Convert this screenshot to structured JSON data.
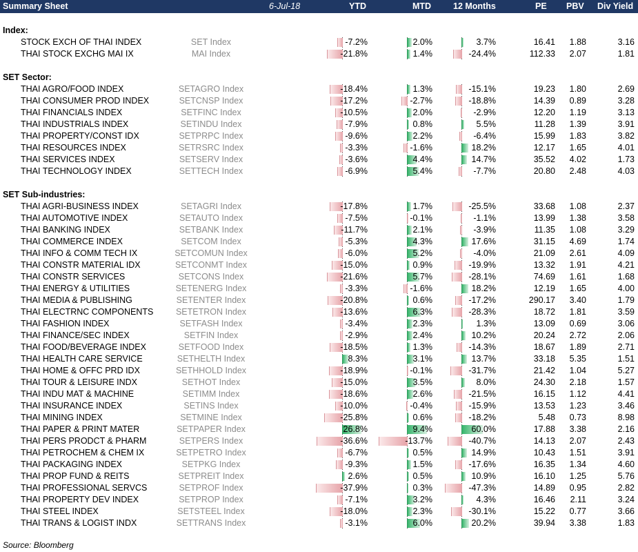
{
  "header": {
    "title": "Summary Sheet",
    "date": "6-Jul-18",
    "ytd": "YTD",
    "mtd": "MTD",
    "twelve_months": "12 Months",
    "pe": "PE",
    "pbv": "PBV",
    "div_yield": "Div Yield"
  },
  "sections": [
    {
      "title": "Index:",
      "rows": [
        {
          "name": "STOCK EXCH OF THAI INDEX",
          "code": "SET Index",
          "ytd": -7.2,
          "ytd_text": "-7.2%",
          "mtd": 2.0,
          "mtd_text": "2.0%",
          "m12": 3.7,
          "m12_text": "3.7%",
          "pe": "16.41",
          "pbv": "1.88",
          "dy": "3.16"
        },
        {
          "name": "THAI STOCK EXCHG MAI IX",
          "code": "MAI Index",
          "ytd": -21.8,
          "ytd_text": "-21.8%",
          "mtd": 1.4,
          "mtd_text": "1.4%",
          "m12": -24.4,
          "m12_text": "-24.4%",
          "pe": "112.33",
          "pbv": "2.07",
          "dy": "1.81"
        }
      ]
    },
    {
      "title": "SET Sector:",
      "rows": [
        {
          "name": "THAI AGRO/FOOD INDEX",
          "code": "SETAGRO Index",
          "ytd": -18.4,
          "ytd_text": "-18.4%",
          "mtd": 1.3,
          "mtd_text": "1.3%",
          "m12": -15.1,
          "m12_text": "-15.1%",
          "pe": "19.23",
          "pbv": "1.80",
          "dy": "2.69"
        },
        {
          "name": "THAI CONSUMER PROD INDEX",
          "code": "SETCNSP Index",
          "ytd": -17.2,
          "ytd_text": "-17.2%",
          "mtd": -2.7,
          "mtd_text": "-2.7%",
          "m12": -18.8,
          "m12_text": "-18.8%",
          "pe": "14.39",
          "pbv": "0.89",
          "dy": "3.28"
        },
        {
          "name": "THAI FINANCIALS INDEX",
          "code": "SETFINC Index",
          "ytd": -10.5,
          "ytd_text": "-10.5%",
          "mtd": 2.0,
          "mtd_text": "2.0%",
          "m12": -2.9,
          "m12_text": "-2.9%",
          "pe": "12.20",
          "pbv": "1.19",
          "dy": "3.13"
        },
        {
          "name": "THAI INDUSTRIALS INDEX",
          "code": "SETINDU Index",
          "ytd": -7.9,
          "ytd_text": "-7.9%",
          "mtd": 0.8,
          "mtd_text": "0.8%",
          "m12": 5.5,
          "m12_text": "5.5%",
          "pe": "11.28",
          "pbv": "1.39",
          "dy": "3.91"
        },
        {
          "name": "THAI PROPERTY/CONST IDX",
          "code": "SETPRPC Index",
          "ytd": -9.6,
          "ytd_text": "-9.6%",
          "mtd": 2.2,
          "mtd_text": "2.2%",
          "m12": -6.4,
          "m12_text": "-6.4%",
          "pe": "15.99",
          "pbv": "1.83",
          "dy": "3.82"
        },
        {
          "name": "THAI RESOURCES INDEX",
          "code": "SETRSRC Index",
          "ytd": -3.3,
          "ytd_text": "-3.3%",
          "mtd": -1.6,
          "mtd_text": "-1.6%",
          "m12": 18.2,
          "m12_text": "18.2%",
          "pe": "12.17",
          "pbv": "1.65",
          "dy": "4.01"
        },
        {
          "name": "THAI SERVICES INDEX",
          "code": "SETSERV Index",
          "ytd": -3.6,
          "ytd_text": "-3.6%",
          "mtd": 4.4,
          "mtd_text": "4.4%",
          "m12": 14.7,
          "m12_text": "14.7%",
          "pe": "35.52",
          "pbv": "4.02",
          "dy": "1.73"
        },
        {
          "name": "THAI TECHNOLOGY INDEX",
          "code": "SETTECH Index",
          "ytd": -6.9,
          "ytd_text": "-6.9%",
          "mtd": 5.4,
          "mtd_text": "5.4%",
          "m12": -7.7,
          "m12_text": "-7.7%",
          "pe": "20.80",
          "pbv": "2.48",
          "dy": "4.03"
        }
      ]
    },
    {
      "title": "SET Sub-industries:",
      "rows": [
        {
          "name": "THAI AGRI-BUSINESS INDEX",
          "code": "SETAGRI Index",
          "ytd": -17.8,
          "ytd_text": "-17.8%",
          "mtd": 1.7,
          "mtd_text": "1.7%",
          "m12": -25.5,
          "m12_text": "-25.5%",
          "pe": "33.68",
          "pbv": "1.08",
          "dy": "2.37"
        },
        {
          "name": "THAI AUTOMOTIVE INDEX",
          "code": "SETAUTO Index",
          "ytd": -7.5,
          "ytd_text": "-7.5%",
          "mtd": -0.1,
          "mtd_text": "-0.1%",
          "m12": -1.1,
          "m12_text": "-1.1%",
          "pe": "13.99",
          "pbv": "1.38",
          "dy": "3.58"
        },
        {
          "name": "THAI BANKING INDEX",
          "code": "SETBANK Index",
          "ytd": -11.7,
          "ytd_text": "-11.7%",
          "mtd": 2.1,
          "mtd_text": "2.1%",
          "m12": -3.9,
          "m12_text": "-3.9%",
          "pe": "11.35",
          "pbv": "1.08",
          "dy": "3.29"
        },
        {
          "name": "THAI COMMERCE INDEX",
          "code": "SETCOM Index",
          "ytd": -5.3,
          "ytd_text": "-5.3%",
          "mtd": 4.3,
          "mtd_text": "4.3%",
          "m12": 17.6,
          "m12_text": "17.6%",
          "pe": "31.15",
          "pbv": "4.69",
          "dy": "1.74"
        },
        {
          "name": "THAI INFO & COMM TECH IX",
          "code": "SETCOMUN Index",
          "ytd": -6.0,
          "ytd_text": "-6.0%",
          "mtd": 5.2,
          "mtd_text": "5.2%",
          "m12": -4.0,
          "m12_text": "-4.0%",
          "pe": "21.09",
          "pbv": "2.61",
          "dy": "4.09"
        },
        {
          "name": "THAI CONSTR MATERIAL IDX",
          "code": "SETCONMT Index",
          "ytd": -15.0,
          "ytd_text": "-15.0%",
          "mtd": 0.9,
          "mtd_text": "0.9%",
          "m12": -19.9,
          "m12_text": "-19.9%",
          "pe": "13.32",
          "pbv": "1.91",
          "dy": "4.21"
        },
        {
          "name": "THAI CONSTR SERVICES",
          "code": "SETCONS Index",
          "ytd": -21.6,
          "ytd_text": "-21.6%",
          "mtd": 5.7,
          "mtd_text": "5.7%",
          "m12": -28.1,
          "m12_text": "-28.1%",
          "pe": "74.69",
          "pbv": "1.61",
          "dy": "1.68"
        },
        {
          "name": "THAI ENERGY & UTILITIES",
          "code": "SETENERG Index",
          "ytd": -3.3,
          "ytd_text": "-3.3%",
          "mtd": -1.6,
          "mtd_text": "-1.6%",
          "m12": 18.2,
          "m12_text": "18.2%",
          "pe": "12.19",
          "pbv": "1.65",
          "dy": "4.00"
        },
        {
          "name": "THAI MEDIA & PUBLISHING",
          "code": "SETENTER Index",
          "ytd": -20.8,
          "ytd_text": "-20.8%",
          "mtd": 0.6,
          "mtd_text": "0.6%",
          "m12": -17.2,
          "m12_text": "-17.2%",
          "pe": "290.17",
          "pbv": "3.40",
          "dy": "1.79"
        },
        {
          "name": "THAI ELECTRNC COMPONENTS",
          "code": "SETETRON Index",
          "ytd": -13.6,
          "ytd_text": "-13.6%",
          "mtd": 6.3,
          "mtd_text": "6.3%",
          "m12": -28.3,
          "m12_text": "-28.3%",
          "pe": "18.72",
          "pbv": "1.81",
          "dy": "3.59"
        },
        {
          "name": "THAI FASHION INDEX",
          "code": "SETFASH Index",
          "ytd": -3.4,
          "ytd_text": "-3.4%",
          "mtd": 2.3,
          "mtd_text": "2.3%",
          "m12": 1.3,
          "m12_text": "1.3%",
          "pe": "13.09",
          "pbv": "0.69",
          "dy": "3.06"
        },
        {
          "name": "THAI FINANCE/SEC INDEX",
          "code": "SETFIN Index",
          "ytd": -2.9,
          "ytd_text": "-2.9%",
          "mtd": 2.4,
          "mtd_text": "2.4%",
          "m12": 10.2,
          "m12_text": "10.2%",
          "pe": "20.24",
          "pbv": "2.72",
          "dy": "2.06"
        },
        {
          "name": "THAI FOOD/BEVERAGE INDEX",
          "code": "SETFOOD Index",
          "ytd": -18.5,
          "ytd_text": "-18.5%",
          "mtd": 1.3,
          "mtd_text": "1.3%",
          "m12": -14.3,
          "m12_text": "-14.3%",
          "pe": "18.67",
          "pbv": "1.89",
          "dy": "2.71"
        },
        {
          "name": "THAI HEALTH CARE SERVICE",
          "code": "SETHELTH Index",
          "ytd": 8.3,
          "ytd_text": "8.3%",
          "mtd": 3.1,
          "mtd_text": "3.1%",
          "m12": 13.7,
          "m12_text": "13.7%",
          "pe": "33.18",
          "pbv": "5.35",
          "dy": "1.51"
        },
        {
          "name": "THAI HOME & OFFC PRD IDX",
          "code": "SETHHOLD Index",
          "ytd": -18.9,
          "ytd_text": "-18.9%",
          "mtd": -0.1,
          "mtd_text": "-0.1%",
          "m12": -31.7,
          "m12_text": "-31.7%",
          "pe": "21.42",
          "pbv": "1.04",
          "dy": "5.27"
        },
        {
          "name": "THAI TOUR & LEISURE INDX",
          "code": "SETHOT Index",
          "ytd": -15.0,
          "ytd_text": "-15.0%",
          "mtd": 3.5,
          "mtd_text": "3.5%",
          "m12": 8.0,
          "m12_text": "8.0%",
          "pe": "24.30",
          "pbv": "2.18",
          "dy": "1.57"
        },
        {
          "name": "THAI INDU MAT & MACHINE",
          "code": "SETIMM Index",
          "ytd": -18.6,
          "ytd_text": "-18.6%",
          "mtd": 2.6,
          "mtd_text": "2.6%",
          "m12": -21.5,
          "m12_text": "-21.5%",
          "pe": "16.15",
          "pbv": "1.12",
          "dy": "4.41"
        },
        {
          "name": "THAI INSURANCE INDEX",
          "code": "SETINS Index",
          "ytd": -10.0,
          "ytd_text": "-10.0%",
          "mtd": -0.4,
          "mtd_text": "-0.4%",
          "m12": -15.9,
          "m12_text": "-15.9%",
          "pe": "13.53",
          "pbv": "1.23",
          "dy": "3.46"
        },
        {
          "name": "THAI MINING INDEX",
          "code": "SETMINE Index",
          "ytd": -25.8,
          "ytd_text": "-25.8%",
          "mtd": 0.6,
          "mtd_text": "0.6%",
          "m12": -18.2,
          "m12_text": "-18.2%",
          "pe": "5.48",
          "pbv": "0.73",
          "dy": "8.98"
        },
        {
          "name": "THAI PAPER & PRINT MATER",
          "code": "SETPAPER Index",
          "ytd": 26.8,
          "ytd_text": "26.8%",
          "mtd": 9.4,
          "mtd_text": "9.4%",
          "m12": 60.0,
          "m12_text": "60.0%",
          "pe": "17.88",
          "pbv": "3.38",
          "dy": "2.16"
        },
        {
          "name": "THAI PERS PRODCT & PHARM",
          "code": "SETPERS Index",
          "ytd": -36.6,
          "ytd_text": "-36.6%",
          "mtd": -13.7,
          "mtd_text": "-13.7%",
          "m12": -40.7,
          "m12_text": "-40.7%",
          "pe": "14.13",
          "pbv": "2.07",
          "dy": "2.43"
        },
        {
          "name": "THAI PETROCHEM & CHEM IX",
          "code": "SETPETRO Index",
          "ytd": -6.7,
          "ytd_text": "-6.7%",
          "mtd": 0.5,
          "mtd_text": "0.5%",
          "m12": 14.9,
          "m12_text": "14.9%",
          "pe": "10.43",
          "pbv": "1.51",
          "dy": "3.91"
        },
        {
          "name": "THAI PACKAGING INDEX",
          "code": "SETPKG Index",
          "ytd": -9.3,
          "ytd_text": "-9.3%",
          "mtd": 1.5,
          "mtd_text": "1.5%",
          "m12": -17.6,
          "m12_text": "-17.6%",
          "pe": "16.35",
          "pbv": "1.34",
          "dy": "4.60"
        },
        {
          "name": "THAI PROP FUND & REITS",
          "code": "SETPREIT Index",
          "ytd": 2.6,
          "ytd_text": "2.6%",
          "mtd": 0.5,
          "mtd_text": "0.5%",
          "m12": 10.9,
          "m12_text": "10.9%",
          "pe": "16.10",
          "pbv": "1.25",
          "dy": "5.76"
        },
        {
          "name": "THAI PROFESSIONAL SERVCS",
          "code": "SETPROF Index",
          "ytd": -37.9,
          "ytd_text": "-37.9%",
          "mtd": 0.3,
          "mtd_text": "0.3%",
          "m12": -47.3,
          "m12_text": "-47.3%",
          "pe": "14.89",
          "pbv": "0.95",
          "dy": "2.82"
        },
        {
          "name": "THAI PROPERTY DEV INDEX",
          "code": "SETPROP Index",
          "ytd": -7.1,
          "ytd_text": "-7.1%",
          "mtd": 3.2,
          "mtd_text": "3.2%",
          "m12": 4.3,
          "m12_text": "4.3%",
          "pe": "16.46",
          "pbv": "2.11",
          "dy": "3.24"
        },
        {
          "name": "THAI STEEL INDEX",
          "code": "SETSTEEL Index",
          "ytd": -18.0,
          "ytd_text": "-18.0%",
          "mtd": 2.3,
          "mtd_text": "2.3%",
          "m12": -30.1,
          "m12_text": "-30.1%",
          "pe": "15.22",
          "pbv": "0.77",
          "dy": "3.66"
        },
        {
          "name": "THAI TRANS & LOGIST INDX",
          "code": "SETTRANS Index",
          "ytd": -3.1,
          "ytd_text": "-3.1%",
          "mtd": 6.0,
          "mtd_text": "6.0%",
          "m12": 20.2,
          "m12_text": "20.2%",
          "pe": "39.94",
          "pbv": "3.38",
          "dy": "1.83"
        }
      ]
    }
  ],
  "source": "Source: Bloomberg",
  "colors": {
    "header_bg": "#1f3864",
    "positive": "#38b56c",
    "negative": "#e6a3a8",
    "code_text": "#8c8c8c"
  }
}
